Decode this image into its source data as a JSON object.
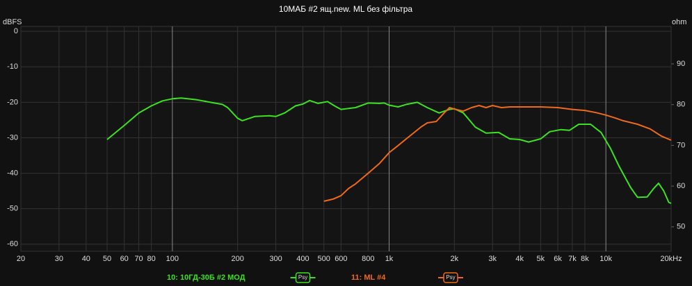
{
  "chart_data": {
    "type": "line",
    "title": "10МАБ #2 ящ.new. ML без фільтра",
    "y_label": "dBFS",
    "y2_label": "ohm",
    "x_log": true,
    "grid": true,
    "xlim": [
      20,
      20000
    ],
    "ylim": [
      -62,
      1.4
    ],
    "y2lim": [
      44,
      99.2
    ],
    "xticks": [
      20,
      30,
      40,
      50,
      60,
      70,
      80,
      100,
      200,
      300,
      400,
      500,
      600,
      800,
      {
        "value": 1000,
        "label": "1k"
      },
      {
        "value": 2000,
        "label": "2k"
      },
      {
        "value": 3000,
        "label": "3k"
      },
      {
        "value": 4000,
        "label": "4k"
      },
      {
        "value": 5000,
        "label": "5k"
      },
      {
        "value": 6000,
        "label": "6k"
      },
      {
        "value": 7000,
        "label": "7k"
      },
      {
        "value": 8000,
        "label": "8k"
      },
      {
        "value": 10000,
        "label": "10k"
      },
      {
        "value": 20000,
        "label": "20kHz"
      }
    ],
    "yticks": [
      0,
      -10,
      -20,
      -30,
      -40,
      -50,
      -60
    ],
    "y2ticks": [
      90,
      80,
      70,
      60,
      50
    ],
    "series": [
      {
        "name": "10: 10ГД-30Б #2 МОД",
        "smoothing": "Psy",
        "color": "#3de21f",
        "x": [
          50,
          60,
          70,
          80,
          90,
          100,
          110,
          130,
          150,
          170,
          180,
          200,
          210,
          240,
          280,
          300,
          330,
          370,
          400,
          430,
          470,
          520,
          560,
          600,
          700,
          800,
          900,
          950,
          1000,
          1100,
          1200,
          1350,
          1500,
          1700,
          1900,
          2000,
          2200,
          2500,
          2800,
          3200,
          3600,
          4000,
          4400,
          5000,
          5500,
          6200,
          6800,
          7500,
          8500,
          9500,
          10500,
          11500,
          13000,
          14000,
          15500,
          16500,
          17500,
          18500,
          19500,
          20000
        ],
        "values": [
          -30.5,
          -26.5,
          -23,
          -21,
          -19.6,
          -19,
          -18.8,
          -19.3,
          -20,
          -20.6,
          -21.5,
          -24.5,
          -25.2,
          -24,
          -23.8,
          -24,
          -23,
          -21,
          -20.5,
          -19.5,
          -20.3,
          -19.8,
          -21,
          -22,
          -21.5,
          -20.2,
          -20.3,
          -20.2,
          -20.8,
          -21.3,
          -20.6,
          -20,
          -21.5,
          -23,
          -22,
          -21.8,
          -23,
          -27,
          -28.7,
          -28.5,
          -30.3,
          -30.5,
          -31.2,
          -30.3,
          -28.3,
          -27.7,
          -27.9,
          -26.2,
          -26.2,
          -28.5,
          -33,
          -38,
          -44,
          -46.8,
          -46.7,
          -44.5,
          -42.8,
          -45,
          -48.2,
          -48.5
        ]
      },
      {
        "name": "11: ML #4",
        "smoothing": "Psy",
        "color": "#f06a17",
        "x": [
          500,
          550,
          600,
          650,
          700,
          800,
          900,
          1000,
          1100,
          1200,
          1400,
          1500,
          1650,
          1800,
          1900,
          2000,
          2200,
          2400,
          2600,
          2800,
          3000,
          3300,
          3600,
          4000,
          5000,
          6000,
          7000,
          8000,
          9000,
          10000,
          11000,
          12000,
          14000,
          16000,
          18000,
          20000
        ],
        "values": [
          -47.9,
          -47.3,
          -46.3,
          -44.3,
          -43,
          -40,
          -37.3,
          -34.2,
          -32.2,
          -30.3,
          -27,
          -25.8,
          -25.4,
          -22.9,
          -21.5,
          -21.9,
          -22.5,
          -21.5,
          -20.9,
          -21.5,
          -20.9,
          -21.5,
          -21.3,
          -21.3,
          -21.3,
          -21.5,
          -22,
          -22.3,
          -22.9,
          -23.6,
          -24.4,
          -25.2,
          -26.2,
          -27.5,
          -29.5,
          -30.7
        ]
      }
    ]
  }
}
